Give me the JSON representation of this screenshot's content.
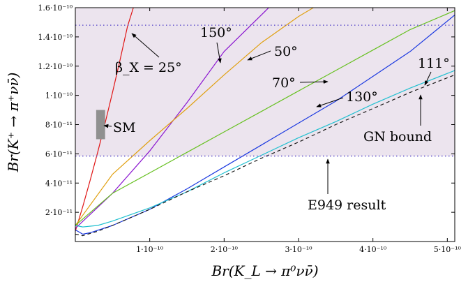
{
  "chart_data": {
    "type": "line",
    "xlabel": "Br(K_L → π⁰νν̄)",
    "ylabel": "Br(K⁺ → π⁺νν̄)",
    "xlim": [
      0,
      5.1e-10
    ],
    "ylim": [
      0,
      1.6e-10
    ],
    "x_ticks": [
      {
        "v": 1e-10,
        "label": "1·10⁻¹⁰"
      },
      {
        "v": 2e-10,
        "label": "2·10⁻¹⁰"
      },
      {
        "v": 3e-10,
        "label": "3·10⁻¹⁰"
      },
      {
        "v": 4e-10,
        "label": "4·10⁻¹⁰"
      },
      {
        "v": 5e-10,
        "label": "5·10⁻¹⁰"
      }
    ],
    "y_ticks": [
      {
        "v": 2e-11,
        "label": "2·10⁻¹¹"
      },
      {
        "v": 4e-11,
        "label": "4·10⁻¹¹"
      },
      {
        "v": 6e-11,
        "label": "6·10⁻¹¹"
      },
      {
        "v": 8e-11,
        "label": "8·10⁻¹¹"
      },
      {
        "v": 1e-10,
        "label": "1·10⁻¹⁰"
      },
      {
        "v": 1.2e-10,
        "label": "1.2·10⁻¹⁰"
      },
      {
        "v": 1.4e-10,
        "label": "1.4·10⁻¹⁰"
      },
      {
        "v": 1.6e-10,
        "label": "1.6·10⁻¹⁰"
      }
    ],
    "band": {
      "y_low": 5.85e-11,
      "y_high": 1.6e-10,
      "y_upper_dotted": 1.48e-10,
      "color": "#ece4ee"
    },
    "sm_box": {
      "x": [
        2.8e-11,
        4e-11
      ],
      "y": [
        7e-11,
        9e-11
      ],
      "color": "#909090"
    },
    "series": [
      {
        "color": "#e01515",
        "dash": "",
        "x": [
          0,
          1e-11,
          2e-11,
          3e-11,
          4e-11,
          5e-11,
          6e-11,
          7e-11,
          7.8e-11
        ],
        "y": [
          7e-12,
          2.4e-11,
          4.2e-11,
          6.1e-11,
          8.1e-11,
          1.02e-10,
          1.24e-10,
          1.47e-10,
          1.6e-10
        ]
      },
      {
        "color": "#8a14d0",
        "dash": "",
        "x": [
          0,
          5e-11,
          1e-10,
          1.5e-10,
          2e-10,
          2.6e-10
        ],
        "y": [
          9e-12,
          3.3e-11,
          6.2e-11,
          9.5e-11,
          1.3e-10,
          1.6e-10
        ]
      },
      {
        "color": "#e0a010",
        "dash": "",
        "x": [
          0,
          5e-11,
          1e-10,
          1.5e-10,
          2e-10,
          2.5e-10,
          3e-10,
          3.2e-10
        ],
        "y": [
          1.1e-11,
          4.6e-11,
          6.9e-11,
          9.1e-11,
          1.14e-10,
          1.36e-10,
          1.54e-10,
          1.6e-10
        ]
      },
      {
        "color": "#66c020",
        "dash": "",
        "x": [
          0,
          5e-11,
          1e-10,
          1.5e-10,
          2e-10,
          2.5e-10,
          3e-10,
          3.5e-10,
          4e-10,
          4.5e-10,
          5.1e-10
        ],
        "y": [
          1.1e-11,
          3.3e-11,
          4.7e-11,
          6.1e-11,
          7.5e-11,
          8.9e-11,
          1.03e-10,
          1.17e-10,
          1.31e-10,
          1.45e-10,
          1.58e-10
        ]
      },
      {
        "color": "#1a38e0",
        "dash": "",
        "x": [
          0,
          1e-11,
          2e-11,
          5e-11,
          1e-10,
          1.5e-10,
          2e-10,
          2.5e-10,
          3e-10,
          3.5e-10,
          4e-10,
          4.5e-10,
          5.1e-10
        ],
        "y": [
          8e-12,
          5e-12,
          6e-12,
          1.1e-11,
          2.2e-11,
          3.6e-11,
          5.1e-11,
          6.6e-11,
          8.1e-11,
          9.6e-11,
          1.13e-10,
          1.3e-10,
          1.55e-10
        ]
      },
      {
        "color": "#20c0d0",
        "dash": "",
        "x": [
          0,
          1e-11,
          3e-11,
          5e-11,
          1e-10,
          1.5e-10,
          2e-10,
          2.5e-10,
          3e-10,
          3.5e-10,
          4e-10,
          4.5e-10,
          5.1e-10
        ],
        "y": [
          1.1e-11,
          1e-11,
          1.1e-11,
          1.4e-11,
          2.3e-11,
          3.4e-11,
          4.7e-11,
          5.9e-11,
          7.1e-11,
          8.2e-11,
          9.4e-11,
          1.05e-10,
          1.17e-10
        ]
      },
      {
        "color": "#1a1a1a",
        "dash": "5,4",
        "x": [
          0,
          1e-11,
          3e-11,
          5e-11,
          1e-10,
          1.5e-10,
          2e-10,
          2.5e-10,
          3e-10,
          3.5e-10,
          4e-10,
          4.5e-10,
          5.1e-10
        ],
        "y": [
          5e-12,
          4e-12,
          7e-12,
          1.1e-11,
          2.2e-11,
          3.4e-11,
          4.5e-11,
          5.7e-11,
          6.8e-11,
          8e-11,
          9.1e-11,
          1.02e-10,
          1.14e-10
        ]
      }
    ],
    "annotations": [
      {
        "text": "β_X = 25°"
      },
      {
        "text": "150°"
      },
      {
        "text": "50°"
      },
      {
        "text": "70°"
      },
      {
        "text": "130°"
      },
      {
        "text": "111°"
      },
      {
        "text": "SM"
      },
      {
        "text": "GN bound"
      },
      {
        "text": "E949 result"
      }
    ]
  }
}
